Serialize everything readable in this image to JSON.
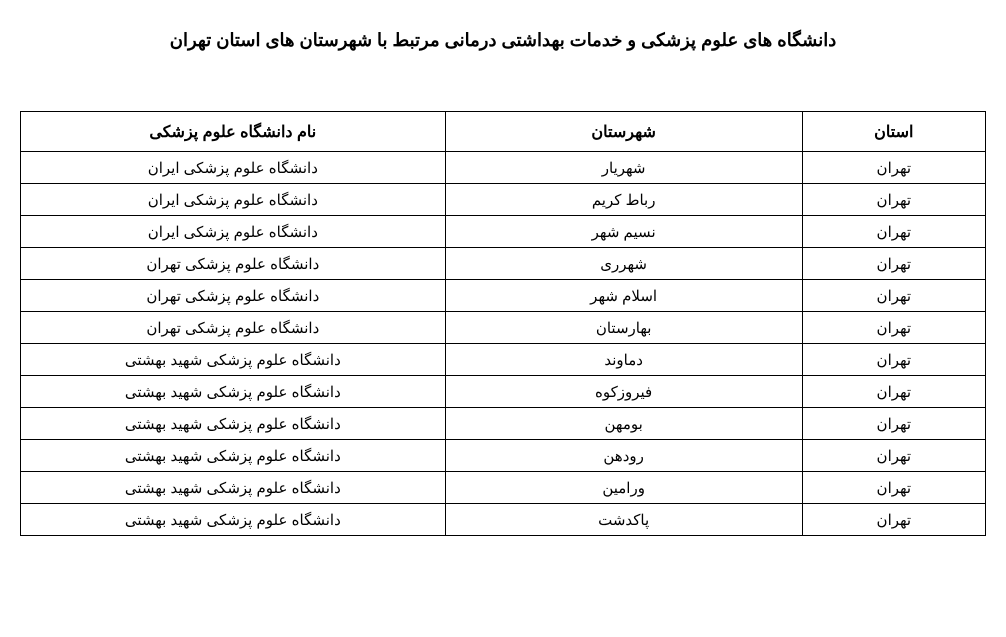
{
  "title": "دانشگاه های علوم پزشکی و خدمات بهداشتی درمانی مرتبط با شهرستان های استان تهران",
  "table": {
    "columns": [
      {
        "key": "province",
        "label": "استان"
      },
      {
        "key": "county",
        "label": "شهرستان"
      },
      {
        "key": "university",
        "label": "نام دانشگاه علوم پزشکی"
      }
    ],
    "rows": [
      {
        "province": "تهران",
        "county": "شهریار",
        "university": "دانشگاه علوم پزشکی ایران"
      },
      {
        "province": "تهران",
        "county": "رباط کریم",
        "university": "دانشگاه علوم پزشکی ایران"
      },
      {
        "province": "تهران",
        "county": "نسیم شهر",
        "university": "دانشگاه علوم پزشکی ایران"
      },
      {
        "province": "تهران",
        "county": "شهرری",
        "university": "دانشگاه علوم پزشکی تهران"
      },
      {
        "province": "تهران",
        "county": "اسلام شهر",
        "university": "دانشگاه علوم پزشکی تهران"
      },
      {
        "province": "تهران",
        "county": "بهارستان",
        "university": "دانشگاه علوم پزشکی تهران"
      },
      {
        "province": "تهران",
        "county": "دماوند",
        "university": "دانشگاه علوم پزشکی شهید بهشتی"
      },
      {
        "province": "تهران",
        "county": "فیروزکوه",
        "university": "دانشگاه علوم پزشکی شهید بهشتی"
      },
      {
        "province": "تهران",
        "county": "بومهن",
        "university": "دانشگاه علوم پزشکی شهید بهشتی"
      },
      {
        "province": "تهران",
        "county": "رودهن",
        "university": "دانشگاه علوم پزشکی شهید بهشتی"
      },
      {
        "province": "تهران",
        "county": "ورامین",
        "university": "دانشگاه علوم پزشکی شهید بهشتی"
      },
      {
        "province": "تهران",
        "county": "پاکدشت",
        "university": "دانشگاه علوم پزشکی شهید بهشتی"
      }
    ]
  },
  "styling": {
    "background_color": "#ffffff",
    "text_color": "#000000",
    "border_color": "#000000",
    "title_fontsize": 18,
    "header_fontsize": 16,
    "cell_fontsize": 15,
    "font_family": "Tahoma",
    "direction": "rtl",
    "col_widths_pct": {
      "province": 19,
      "county": 37,
      "university": 44
    }
  }
}
